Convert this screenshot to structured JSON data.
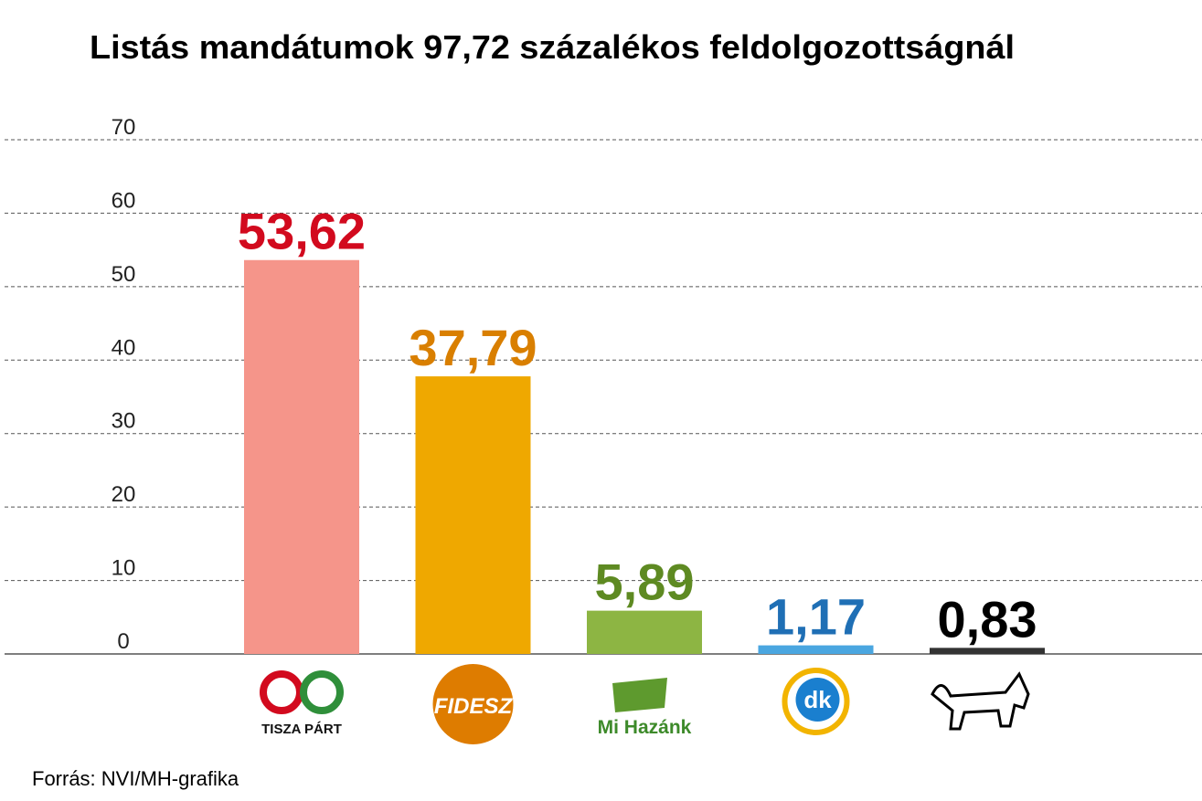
{
  "chart_data": {
    "type": "bar",
    "title": "Listás mandátumok 97,72 százalékos feldolgozottságnál",
    "source": "Forrás: NVI/MH-grafika",
    "categories": [
      "TISZA PÁRT",
      "FIDESZ",
      "Mi Hazánk",
      "dk",
      null
    ],
    "values": [
      53.62,
      37.79,
      5.89,
      1.17,
      0.83
    ],
    "value_labels": [
      "53,62",
      "37,79",
      "5,89",
      "1,17",
      "0,83"
    ],
    "colors": [
      "#f5958a",
      "#efa800",
      "#8db543",
      "#4aa6e0",
      "#333333"
    ],
    "label_colors": [
      "#d20a1e",
      "#d97f00",
      "#5e8a22",
      "#1f6fb5",
      "#000000"
    ],
    "ylim": [
      0,
      70
    ],
    "yticks": [
      0,
      10,
      20,
      30,
      40,
      50,
      60,
      70
    ],
    "grid": true
  }
}
